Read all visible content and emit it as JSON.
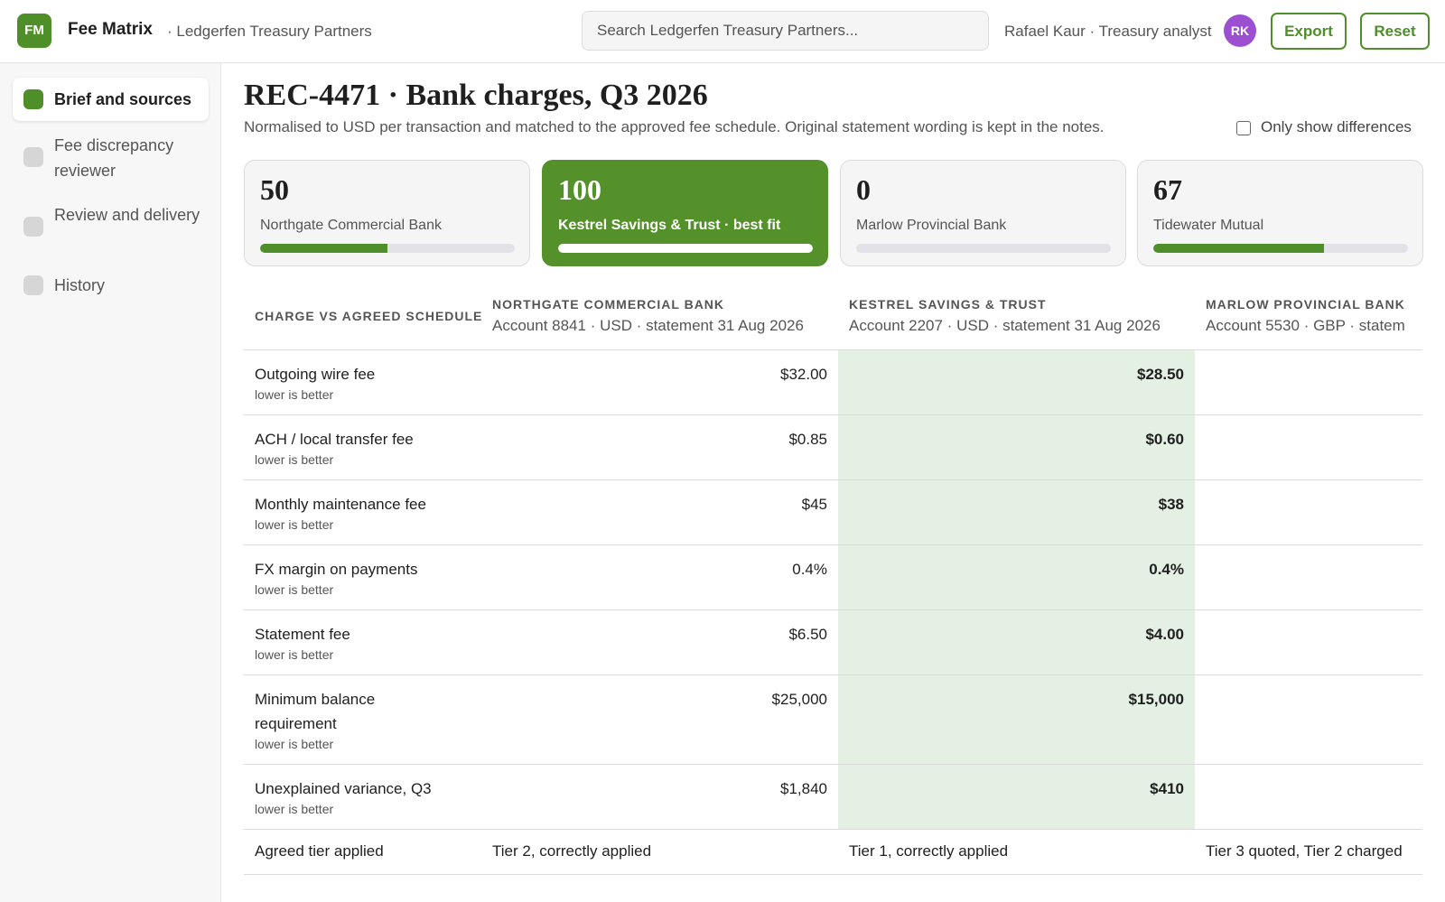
{
  "app": {
    "logo": "FM",
    "title": "Fee Matrix",
    "org_crumb": "· Ledgerfen Treasury Partners",
    "search_placeholder": "Search Ledgerfen Treasury Partners...",
    "user_label": "Rafael Kaur · Treasury analyst",
    "user_initials": "RK",
    "avatar_color": "#9c4fd0",
    "accent_color": "#4e8f2a",
    "export_label": "Export",
    "reset_label": "Reset"
  },
  "sidebar": {
    "items": [
      {
        "label": "Brief and sources",
        "active": true
      },
      {
        "label": "Fee discrepancy reviewer",
        "active": false
      },
      {
        "label": "Review and delivery",
        "active": false
      },
      {
        "label": "History",
        "active": false
      }
    ]
  },
  "page": {
    "title": "REC-4471 · Bank charges, Q3 2026",
    "subtitle": "Normalised to USD per transaction and matched to the approved fee schedule. Original statement wording is kept in the notes.",
    "diff_toggle_label": "Only show differences",
    "diff_toggle_checked": false
  },
  "scores": [
    {
      "score": "50",
      "name": "Northgate Commercial Bank",
      "progress": 0.5,
      "best": false
    },
    {
      "score": "100",
      "name": "Kestrel Savings & Trust · best fit",
      "progress": 1.0,
      "best": true
    },
    {
      "score": "0",
      "name": "Marlow Provincial Bank",
      "progress": 0.0,
      "best": false
    },
    {
      "score": "67",
      "name": "Tidewater Mutual",
      "progress": 0.67,
      "best": false
    }
  ],
  "table": {
    "row_header": "CHARGE VS AGREED SCHEDULE",
    "vendors": [
      {
        "name": "NORTHGATE COMMERCIAL BANK",
        "detail": "Account 8841 · USD · statement 31 Aug 2026"
      },
      {
        "name": "KESTREL SAVINGS & TRUST",
        "detail": "Account 2207 · USD · statement 31 Aug 2026"
      },
      {
        "name": "MARLOW PROVINCIAL BANK",
        "detail": "Account 5530 · GBP · statem"
      }
    ],
    "rows": [
      {
        "metric": "Outgoing wire fee",
        "hint": "lower is better",
        "values": [
          "$32.00",
          "$28.50",
          ""
        ]
      },
      {
        "metric": "ACH / local transfer fee",
        "hint": "lower is better",
        "values": [
          "$0.85",
          "$0.60",
          ""
        ]
      },
      {
        "metric": "Monthly maintenance fee",
        "hint": "lower is better",
        "values": [
          "$45",
          "$38",
          ""
        ]
      },
      {
        "metric": "FX margin on payments",
        "hint": "lower is better",
        "values": [
          "0.4%",
          "0.4%",
          ""
        ]
      },
      {
        "metric": "Statement fee",
        "hint": "lower is better",
        "values": [
          "$6.50",
          "$4.00",
          ""
        ]
      },
      {
        "metric": "Minimum balance requirement",
        "hint": "lower is better",
        "values": [
          "$25,000",
          "$15,000",
          ""
        ]
      },
      {
        "metric": "Unexplained variance, Q3",
        "hint": "lower is better",
        "values": [
          "$1,840",
          "$410",
          ""
        ]
      }
    ],
    "footer": {
      "label": "Agreed tier applied",
      "values": [
        "Tier 2, correctly applied",
        "Tier 1, correctly applied",
        "Tier 3 quoted, Tier 2 charged"
      ]
    },
    "best_column_index": 1
  }
}
